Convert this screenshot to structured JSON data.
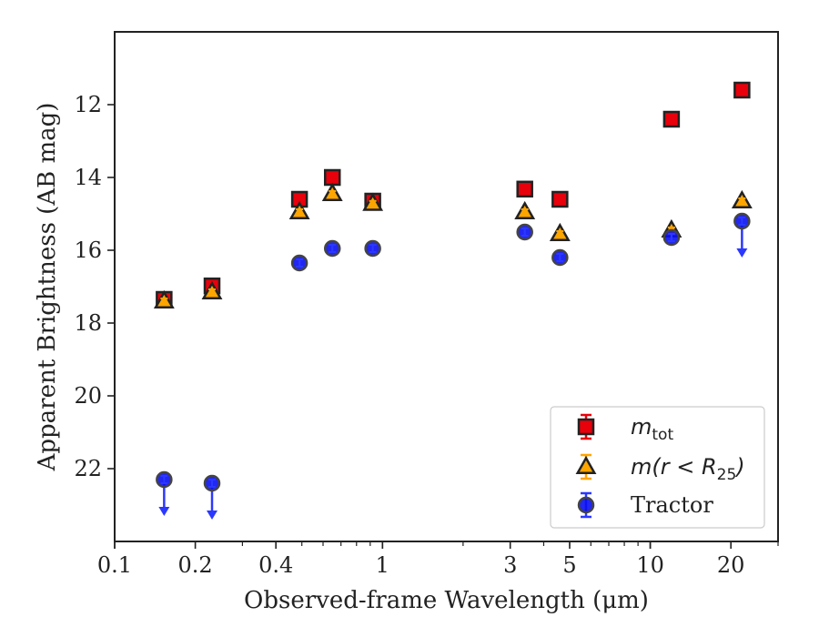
{
  "chart_data": {
    "type": "scatter",
    "xlabel": "Observed-frame Wavelength (μm)",
    "ylabel": "Apparent Brightness (AB mag)",
    "xscale": "log",
    "xlim": [
      0.1,
      30
    ],
    "ylim": [
      24,
      10
    ],
    "y_inverted": true,
    "grid": false,
    "legend_position": "lower-right",
    "x_ticks": [
      {
        "value": 0.1,
        "label": "0.1"
      },
      {
        "value": 0.2,
        "label": "0.2"
      },
      {
        "value": 0.4,
        "label": "0.4"
      },
      {
        "value": 1,
        "label": "1"
      },
      {
        "value": 3,
        "label": "3"
      },
      {
        "value": 5,
        "label": "5"
      },
      {
        "value": 10,
        "label": "10"
      },
      {
        "value": 20,
        "label": "20"
      }
    ],
    "y_ticks": [
      {
        "value": 12,
        "label": "12"
      },
      {
        "value": 14,
        "label": "14"
      },
      {
        "value": 16,
        "label": "16"
      },
      {
        "value": 18,
        "label": "18"
      },
      {
        "value": 20,
        "label": "20"
      },
      {
        "value": 22,
        "label": "22"
      }
    ],
    "series": [
      {
        "name": "m_tot",
        "legend_main": "m",
        "legend_sub": "tot",
        "marker": "square",
        "color": "#e8000b",
        "error_color": "#e8000b",
        "points": [
          {
            "x": 0.153,
            "y": 17.35,
            "upper_limit": false
          },
          {
            "x": 0.231,
            "y": 16.98,
            "upper_limit": false
          },
          {
            "x": 0.49,
            "y": 14.6,
            "upper_limit": false
          },
          {
            "x": 0.65,
            "y": 14.0,
            "upper_limit": false
          },
          {
            "x": 0.92,
            "y": 14.65,
            "upper_limit": false
          },
          {
            "x": 3.4,
            "y": 14.32,
            "upper_limit": false
          },
          {
            "x": 4.6,
            "y": 14.6,
            "upper_limit": false
          },
          {
            "x": 12.0,
            "y": 12.4,
            "upper_limit": false
          },
          {
            "x": 22.0,
            "y": 11.6,
            "upper_limit": false
          }
        ]
      },
      {
        "name": "m(r < R25)",
        "legend_prefix": "m(r < R",
        "legend_sub": "25",
        "legend_suffix": ")",
        "marker": "triangle",
        "color": "#ffa500",
        "error_color": "#ffa500",
        "points": [
          {
            "x": 0.153,
            "y": 17.4,
            "upper_limit": false
          },
          {
            "x": 0.231,
            "y": 17.15,
            "upper_limit": false
          },
          {
            "x": 0.49,
            "y": 14.95,
            "upper_limit": false
          },
          {
            "x": 0.65,
            "y": 14.45,
            "upper_limit": false
          },
          {
            "x": 0.92,
            "y": 14.72,
            "upper_limit": false
          },
          {
            "x": 3.4,
            "y": 14.95,
            "upper_limit": false
          },
          {
            "x": 4.6,
            "y": 15.55,
            "upper_limit": false
          },
          {
            "x": 12.0,
            "y": 15.45,
            "upper_limit": false
          },
          {
            "x": 22.0,
            "y": 14.65,
            "upper_limit": false
          }
        ]
      },
      {
        "name": "Tractor",
        "marker": "circle",
        "color": "#0a10f0",
        "error_color": "#2b38ff",
        "points": [
          {
            "x": 0.153,
            "y": 22.3,
            "upper_limit": true
          },
          {
            "x": 0.231,
            "y": 22.4,
            "upper_limit": true
          },
          {
            "x": 0.49,
            "y": 16.35,
            "upper_limit": false
          },
          {
            "x": 0.65,
            "y": 15.95,
            "upper_limit": false
          },
          {
            "x": 0.92,
            "y": 15.95,
            "upper_limit": false
          },
          {
            "x": 3.4,
            "y": 15.5,
            "upper_limit": false
          },
          {
            "x": 4.6,
            "y": 16.2,
            "upper_limit": false
          },
          {
            "x": 12.0,
            "y": 15.65,
            "upper_limit": false
          },
          {
            "x": 22.0,
            "y": 15.2,
            "upper_limit": true
          }
        ]
      }
    ]
  }
}
